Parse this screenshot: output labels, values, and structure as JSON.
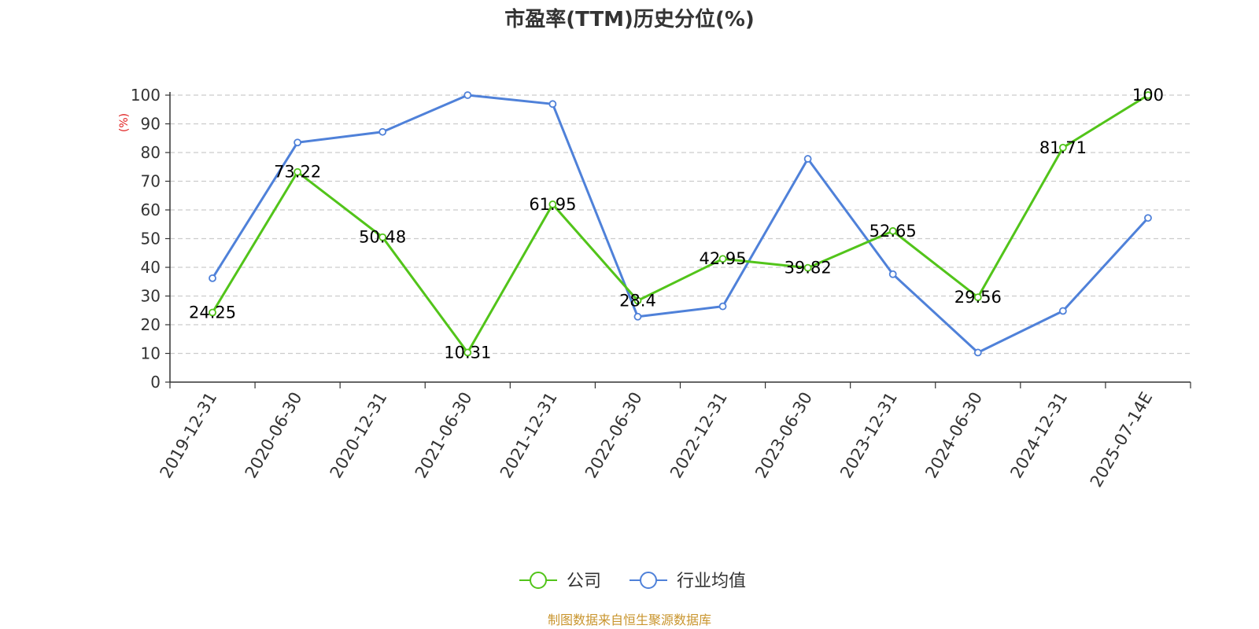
{
  "chart_data": {
    "type": "line",
    "title": "市盈率(TTM)历史分位(%)",
    "ylabel": "(%)",
    "ylim": [
      0,
      100
    ],
    "yticks": [
      0,
      10,
      20,
      30,
      40,
      50,
      60,
      70,
      80,
      90,
      100
    ],
    "grid": true,
    "legend_position": "bottom-center",
    "categories": [
      "2019-12-31",
      "2020-06-30",
      "2020-12-31",
      "2021-06-30",
      "2021-12-31",
      "2022-06-30",
      "2022-12-31",
      "2023-06-30",
      "2023-12-31",
      "2024-06-30",
      "2024-12-31",
      "2025-07-14E"
    ],
    "series": [
      {
        "name": "公司",
        "color": "#52c41a",
        "show_labels": true,
        "values": [
          24.25,
          73.22,
          50.48,
          10.31,
          61.95,
          28.4,
          42.95,
          39.82,
          52.65,
          29.56,
          81.71,
          100
        ]
      },
      {
        "name": "行业均值",
        "color": "#4f81d9",
        "show_labels": false,
        "values": [
          36.2,
          83.5,
          87.2,
          100,
          96.9,
          22.8,
          26.4,
          77.8,
          37.6,
          10.3,
          24.8,
          57.2
        ]
      }
    ],
    "source": "制图数据来自恒生聚源数据库",
    "source_color": "#c9952e",
    "ylabel_color": "#e02020"
  }
}
